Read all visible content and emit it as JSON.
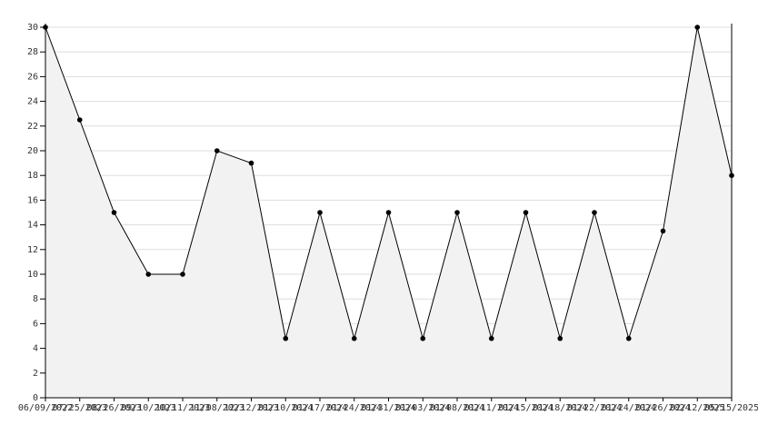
{
  "chart_data": {
    "type": "line",
    "fill_area": true,
    "color": "#000000",
    "fill_color": "#f2f2f2",
    "x": [
      "06/09/2022",
      "07/25/2023",
      "08/26/2023",
      "09/10/2023",
      "10/11/2023",
      "11/08/2023",
      "12/12/2023",
      "01/10/2024",
      "01/17/2024",
      "01/24/2024",
      "01/31/2024",
      "01/03/2024",
      "01/08/2024",
      "01/11/2024",
      "01/15/2024",
      "01/18/2024",
      "01/22/2024",
      "01/24/2024",
      "01/26/2024",
      "02/12/2025",
      "05/15/2025"
    ],
    "values": [
      30,
      22.5,
      15,
      10,
      10,
      20,
      19,
      4.8,
      15,
      4.8,
      15,
      4.8,
      15,
      4.8,
      15,
      4.8,
      15,
      4.8,
      13.5,
      30,
      18
    ],
    "ylim": [
      0,
      30
    ],
    "yticks": [
      0,
      2,
      4,
      6,
      8,
      10,
      12,
      14,
      16,
      18,
      20,
      22,
      24,
      26,
      28,
      30
    ],
    "grid": true
  }
}
